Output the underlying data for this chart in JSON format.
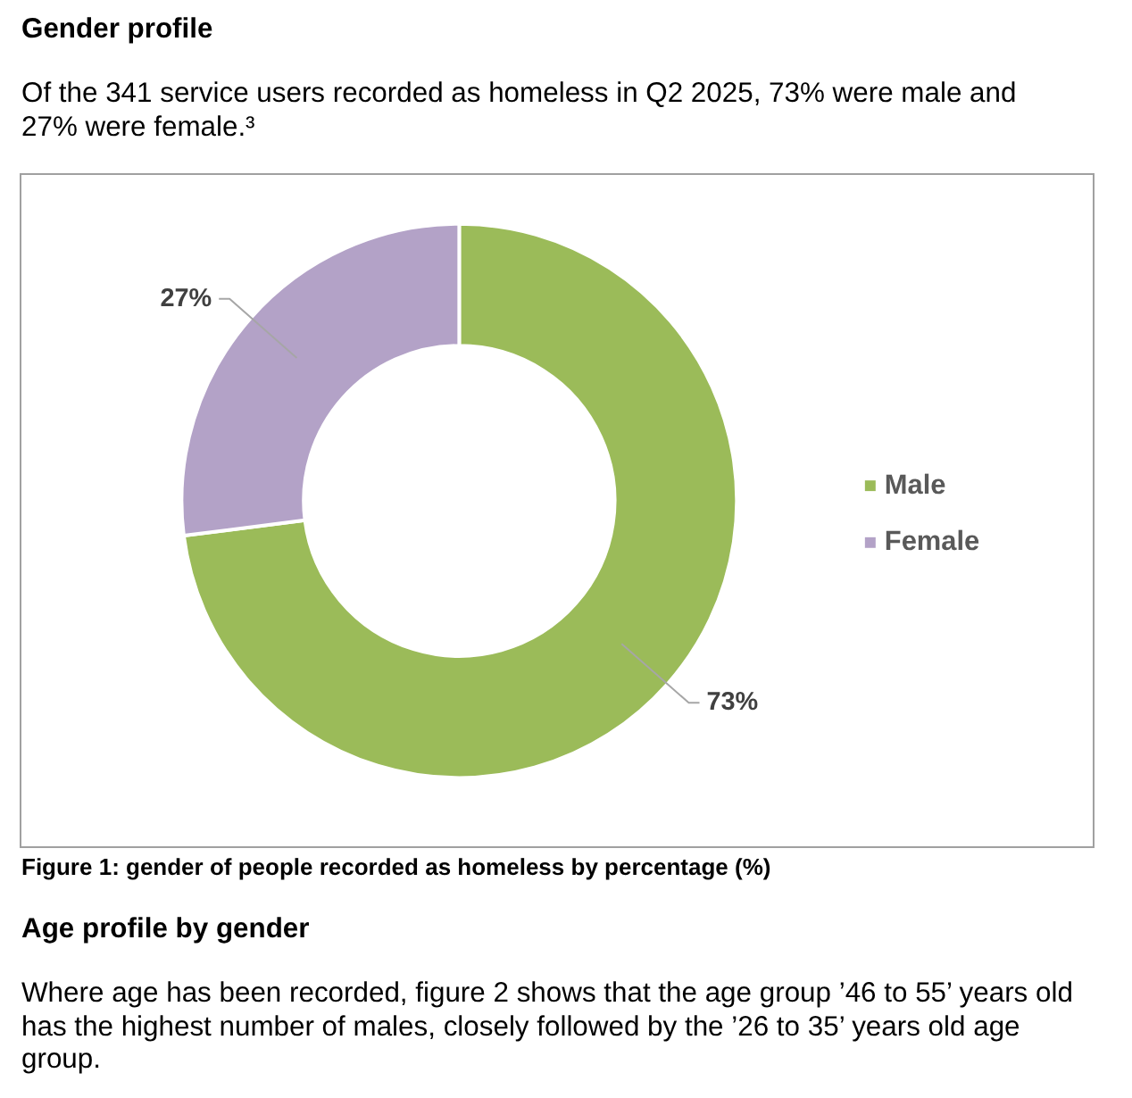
{
  "chart_data": {
    "type": "donut",
    "title": "Gender profile",
    "subtitle": "Of the 341 service users recorded as homeless in Q2 2025, 73% were male and 27% were female.³",
    "categories": [
      "Male",
      "Female"
    ],
    "values": [
      73,
      27
    ],
    "colors": [
      "#9bbb59",
      "#b3a2c7"
    ],
    "value_labels": [
      "73%",
      "27%"
    ],
    "legend": "right",
    "annotations": [
      "Figure 1: gender of people recorded as homeless by percentage (%)",
      "Age profile by gender",
      "Where age has been recorded, figure 2 shows that the age group ’46 to 55’ years old has the highest number of males, closely followed by the ’26 to 35’ years old age group."
    ]
  }
}
